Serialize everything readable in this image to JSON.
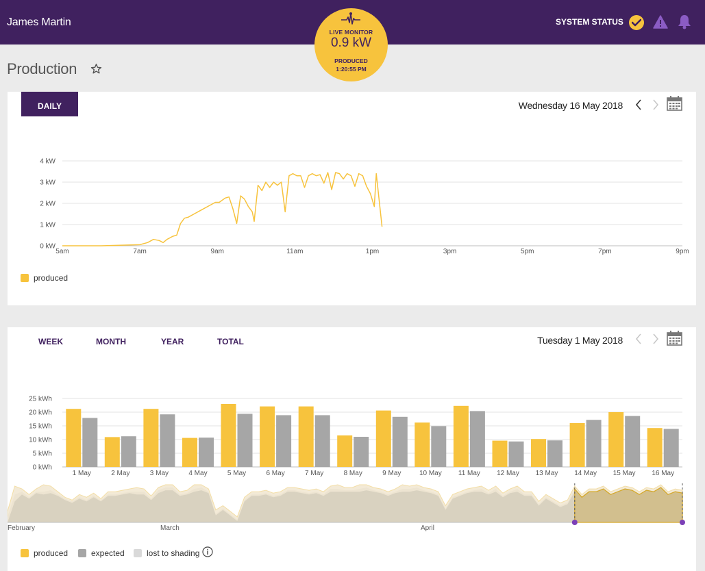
{
  "header": {
    "user_name": "James Martin",
    "system_status_label": "SYSTEM STATUS",
    "live_monitor": {
      "title": "LIVE MONITOR",
      "value": "0.9 kW",
      "status": "PRODUCED",
      "time": "1:20:55 PM"
    }
  },
  "page": {
    "title": "Production"
  },
  "colors": {
    "brand": "#40215f",
    "produced": "#f7c33d",
    "expected": "#a6a6a6",
    "shading": "#d9d9d9"
  },
  "daily_card": {
    "tab_label": "DAILY",
    "date": "Wednesday 16 May 2018",
    "legend": [
      {
        "label": "produced",
        "color": "#f7c33d"
      }
    ]
  },
  "period_card": {
    "tabs": [
      "WEEK",
      "MONTH",
      "YEAR",
      "TOTAL"
    ],
    "date": "Tuesday 1 May 2018",
    "legend": [
      {
        "label": "produced",
        "color": "#f7c33d"
      },
      {
        "label": "expected",
        "color": "#a6a6a6"
      },
      {
        "label": "lost to shading",
        "color": "#d9d9d9"
      }
    ],
    "overview_labels": [
      "February",
      "March",
      "April"
    ]
  },
  "chart_data": [
    {
      "type": "line",
      "title": "",
      "ylabel": "",
      "ylim": [
        0,
        4
      ],
      "y_tick_labels": [
        "0 kW",
        "1 kW",
        "2 kW",
        "3 kW",
        "4 kW"
      ],
      "x_tick_labels": [
        "5am",
        "7am",
        "9am",
        "11am",
        "1pm",
        "3pm",
        "5pm",
        "7pm",
        "9pm"
      ],
      "xlim_hours": [
        5,
        21
      ],
      "grid": true,
      "legend_position": "bottom-left",
      "series": [
        {
          "name": "produced",
          "color": "#f7c33d",
          "x_hours": [
            5.0,
            6.0,
            7.0,
            7.2,
            7.35,
            7.5,
            7.6,
            7.7,
            7.85,
            7.95,
            8.05,
            8.15,
            8.25,
            8.4,
            8.6,
            8.8,
            8.95,
            9.05,
            9.2,
            9.3,
            9.4,
            9.5,
            9.6,
            9.7,
            9.8,
            9.9,
            9.95,
            10.05,
            10.15,
            10.25,
            10.35,
            10.45,
            10.55,
            10.65,
            10.75,
            10.85,
            10.95,
            11.05,
            11.15,
            11.25,
            11.35,
            11.45,
            11.55,
            11.65,
            11.75,
            11.85,
            11.95,
            12.05,
            12.15,
            12.25,
            12.35,
            12.45,
            12.55,
            12.65,
            12.75,
            12.85,
            12.95,
            13.05,
            13.1,
            13.25
          ],
          "y_kw": [
            0,
            0,
            0.05,
            0.15,
            0.3,
            0.25,
            0.15,
            0.3,
            0.45,
            0.5,
            1.05,
            1.3,
            1.35,
            1.5,
            1.7,
            1.9,
            2.05,
            2.05,
            2.25,
            2.3,
            1.75,
            1.05,
            2.35,
            2.2,
            1.85,
            1.6,
            1.15,
            2.85,
            2.6,
            3.0,
            2.75,
            3.0,
            2.85,
            3.0,
            1.6,
            3.3,
            3.4,
            3.3,
            3.3,
            2.75,
            3.3,
            3.4,
            3.3,
            3.35,
            2.95,
            3.45,
            2.65,
            3.45,
            3.4,
            3.15,
            3.4,
            3.3,
            2.8,
            3.4,
            3.3,
            2.8,
            2.45,
            1.85,
            3.4,
            0.9
          ]
        }
      ]
    },
    {
      "type": "bar",
      "title": "",
      "ylabel": "",
      "ylim": [
        0,
        25
      ],
      "y_tick_labels": [
        "0 kWh",
        "5 kWh",
        "10 kWh",
        "15 kWh",
        "20 kWh",
        "25 kWh"
      ],
      "categories": [
        "1 May",
        "2 May",
        "3 May",
        "4 May",
        "5 May",
        "6 May",
        "7 May",
        "8 May",
        "9 May",
        "10 May",
        "11 May",
        "12 May",
        "13 May",
        "14 May",
        "15 May",
        "16 May"
      ],
      "grid": true,
      "legend_position": "bottom-left",
      "series": [
        {
          "name": "produced",
          "color": "#f7c33d",
          "values": [
            21.2,
            10.9,
            21.2,
            10.6,
            23.0,
            22.1,
            22.1,
            11.5,
            20.6,
            16.2,
            22.3,
            9.6,
            10.2,
            16.0,
            20.0,
            14.2
          ]
        },
        {
          "name": "expected",
          "color": "#a6a6a6",
          "values": [
            17.9,
            11.2,
            19.2,
            10.7,
            19.4,
            18.9,
            18.9,
            11.0,
            18.3,
            14.9,
            20.4,
            9.3,
            9.7,
            17.2,
            18.6,
            13.9
          ]
        }
      ]
    },
    {
      "type": "area",
      "title": "",
      "x_tick_labels": [
        "February",
        "March",
        "April"
      ],
      "series": [
        {
          "name": "lost to shading",
          "color": "#f3ead7",
          "values": [
            8,
            26,
            24,
            20,
            24,
            27,
            26,
            22,
            18,
            16,
            20,
            18,
            21,
            17,
            22,
            22,
            23,
            24,
            25,
            24,
            19,
            25,
            27,
            27,
            22,
            23,
            27,
            27,
            24,
            9,
            12,
            8,
            4,
            18,
            22,
            22,
            23,
            21,
            22,
            25,
            25,
            24,
            23,
            24,
            22,
            26,
            27,
            25,
            25,
            27,
            27,
            25,
            24,
            22,
            24,
            27,
            26,
            27,
            25,
            24,
            22,
            12,
            20,
            22,
            24,
            25,
            26,
            23,
            26,
            21,
            24,
            26,
            22,
            22,
            15,
            20,
            17,
            14,
            16,
            26,
            20,
            24,
            24,
            26,
            22,
            24,
            26,
            25,
            22,
            25,
            24,
            27,
            22,
            24,
            23
          ]
        },
        {
          "name": "produced",
          "color": "#ede4d1",
          "values": [
            4,
            20,
            22,
            18,
            22,
            22,
            23,
            20,
            17,
            15,
            18,
            16,
            19,
            16,
            20,
            20,
            21,
            22,
            22,
            22,
            17,
            23,
            25,
            25,
            20,
            21,
            24,
            25,
            22,
            6,
            10,
            6,
            2,
            16,
            20,
            20,
            21,
            19,
            20,
            23,
            23,
            22,
            21,
            22,
            20,
            24,
            24,
            23,
            23,
            24,
            25,
            23,
            22,
            20,
            22,
            24,
            24,
            25,
            23,
            22,
            20,
            10,
            18,
            20,
            22,
            23,
            24,
            21,
            24,
            19,
            22,
            24,
            20,
            20,
            13,
            18,
            15,
            12,
            14,
            24,
            18,
            22,
            22,
            24,
            20,
            22,
            24,
            23,
            20,
            23,
            22,
            25,
            20,
            22,
            21
          ]
        },
        {
          "name": "expected",
          "color": "#d9d2c0",
          "values": [
            0,
            15,
            20,
            17,
            21,
            20,
            21,
            19,
            16,
            14,
            17,
            15,
            18,
            15,
            19,
            19,
            20,
            21,
            20,
            20,
            16,
            21,
            23,
            23,
            19,
            20,
            22,
            23,
            21,
            5,
            9,
            5,
            1,
            15,
            19,
            19,
            20,
            18,
            19,
            22,
            22,
            21,
            20,
            21,
            19,
            22,
            22,
            22,
            22,
            22,
            23,
            22,
            21,
            19,
            21,
            22,
            22,
            23,
            22,
            21,
            19,
            9,
            17,
            19,
            21,
            22,
            22,
            20,
            22,
            18,
            21,
            22,
            19,
            19,
            12,
            17,
            14,
            11,
            13,
            22,
            17,
            21,
            21,
            22,
            19,
            21,
            22,
            22,
            19,
            22,
            21,
            23,
            19,
            21,
            20
          ]
        }
      ]
    }
  ]
}
